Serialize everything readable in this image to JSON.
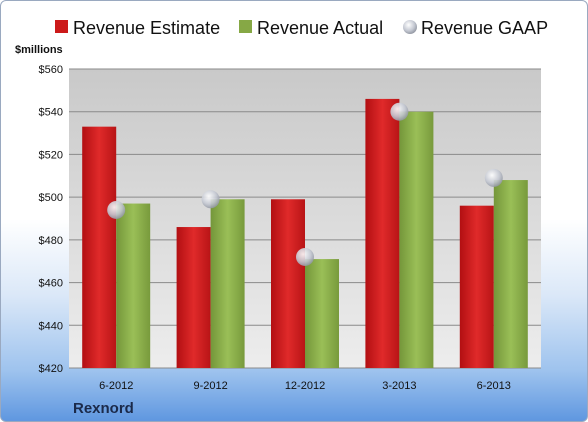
{
  "chart_data": {
    "type": "bar",
    "unit_label": "$millions",
    "company": "Rexnord",
    "categories": [
      "6-2012",
      "9-2012",
      "12-2012",
      "3-2013",
      "6-2013"
    ],
    "series": [
      {
        "name": "Revenue Estimate",
        "kind": "bar",
        "color": "#cc1a1a",
        "values": [
          533,
          486,
          499,
          546,
          496
        ]
      },
      {
        "name": "Revenue Actual",
        "kind": "bar",
        "color": "#86a845",
        "values": [
          497,
          499,
          471,
          540,
          508
        ]
      },
      {
        "name": "Revenue GAAP",
        "kind": "marker",
        "color": "#c6cbd6",
        "values": [
          494,
          499,
          472,
          540,
          509
        ]
      }
    ],
    "ylim": [
      420,
      560
    ],
    "yticks": [
      "$420",
      "$440",
      "$460",
      "$480",
      "$500",
      "$520",
      "$540",
      "$560"
    ],
    "ytick_values": [
      420,
      440,
      460,
      480,
      500,
      520,
      540,
      560
    ],
    "grid": true,
    "legend_position": "top"
  }
}
